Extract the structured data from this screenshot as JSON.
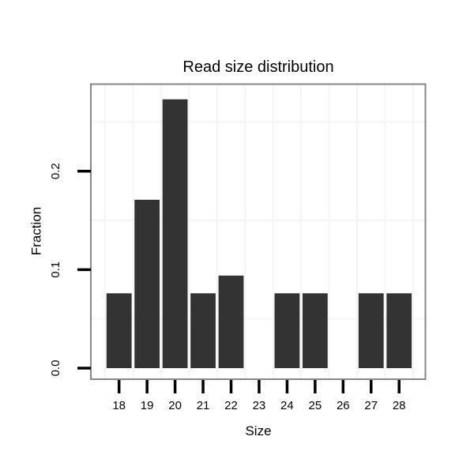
{
  "figure": {
    "background_color": "#ffffff"
  },
  "chart_data": {
    "type": "bar",
    "title": "Read size distribution",
    "xlabel": "Size",
    "ylabel": "Fraction",
    "categories": [
      18,
      19,
      20,
      21,
      22,
      23,
      24,
      25,
      26,
      27,
      28
    ],
    "values": [
      0.076,
      0.171,
      0.273,
      0.076,
      0.094,
      0,
      0.076,
      0.076,
      0,
      0.076,
      0.076
    ],
    "xtick_labels": [
      "18",
      "19",
      "20",
      "21",
      "22",
      "23",
      "24",
      "25",
      "26",
      "27",
      "28"
    ],
    "yticks": [
      0.0,
      0.1,
      0.2
    ],
    "ytick_labels": [
      "0.0",
      "0.1",
      "0.2"
    ],
    "xlim": [
      17.0,
      28.95
    ],
    "ylim": [
      -0.011,
      0.288
    ],
    "grid": {
      "minor_x": [
        17.5,
        18.5,
        19.5,
        20.5,
        21.5,
        22.5,
        23.5,
        24.5,
        25.5,
        26.5,
        27.5,
        28.5
      ],
      "minor_y": [
        0.05,
        0.15,
        0.25
      ],
      "major_visible": false
    },
    "legend_position": "none",
    "colors": {
      "bar_fill": "#333333",
      "panel_border": "#878787",
      "panel_background": "#ffffff",
      "gridline_minor": "#f5f5f5",
      "tick_mark": "#000000",
      "text": "#000000"
    }
  }
}
